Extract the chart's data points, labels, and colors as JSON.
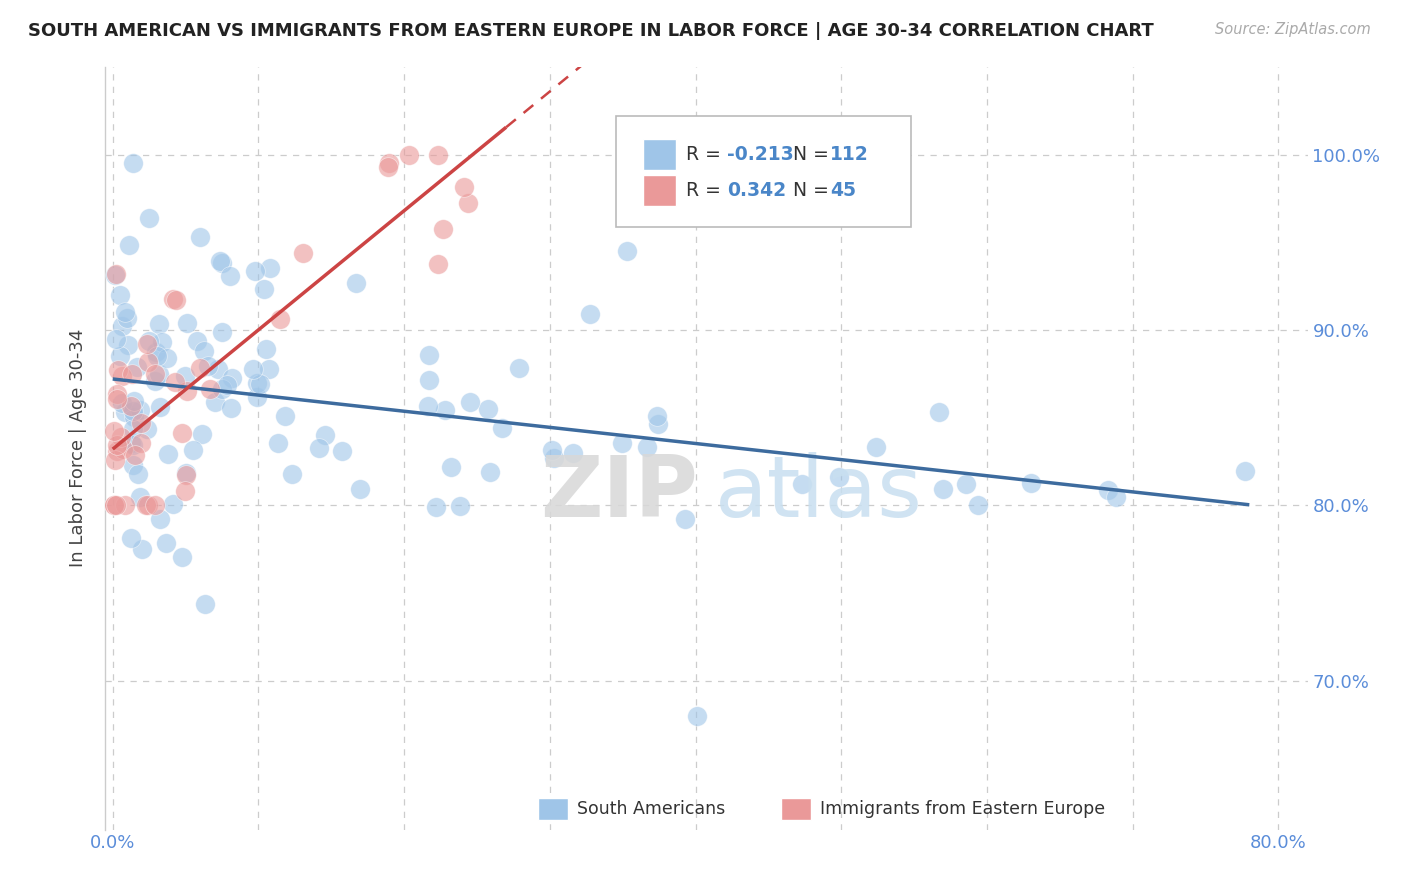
{
  "title": "SOUTH AMERICAN VS IMMIGRANTS FROM EASTERN EUROPE IN LABOR FORCE | AGE 30-34 CORRELATION CHART",
  "source": "Source: ZipAtlas.com",
  "ylabel": "In Labor Force | Age 30-34",
  "xlim": [
    -0.005,
    0.82
  ],
  "ylim": [
    0.615,
    1.05
  ],
  "xtick_positions": [
    0.0,
    0.1,
    0.2,
    0.3,
    0.4,
    0.5,
    0.6,
    0.7,
    0.8
  ],
  "xticklabels": [
    "0.0%",
    "",
    "",
    "",
    "",
    "",
    "",
    "",
    "80.0%"
  ],
  "ytick_positions": [
    0.7,
    0.8,
    0.9,
    1.0
  ],
  "yticklabels": [
    "70.0%",
    "80.0%",
    "90.0%",
    "100.0%"
  ],
  "blue_R": -0.213,
  "blue_N": 112,
  "pink_R": 0.342,
  "pink_N": 45,
  "blue_color": "#9fc5e8",
  "pink_color": "#ea9999",
  "blue_line_color": "#3d6b9e",
  "pink_line_color": "#cc4444",
  "watermark_zip_color": "#d8d8d8",
  "watermark_atlas_color": "#c8dff0",
  "legend_blue_label": "South Americans",
  "legend_pink_label": "Immigrants from Eastern Europe",
  "blue_intercept": 0.872,
  "blue_slope": -0.092,
  "pink_intercept": 0.832,
  "pink_slope": 0.68,
  "pink_line_solid_end": 0.27,
  "pink_line_dash_end": 0.82
}
